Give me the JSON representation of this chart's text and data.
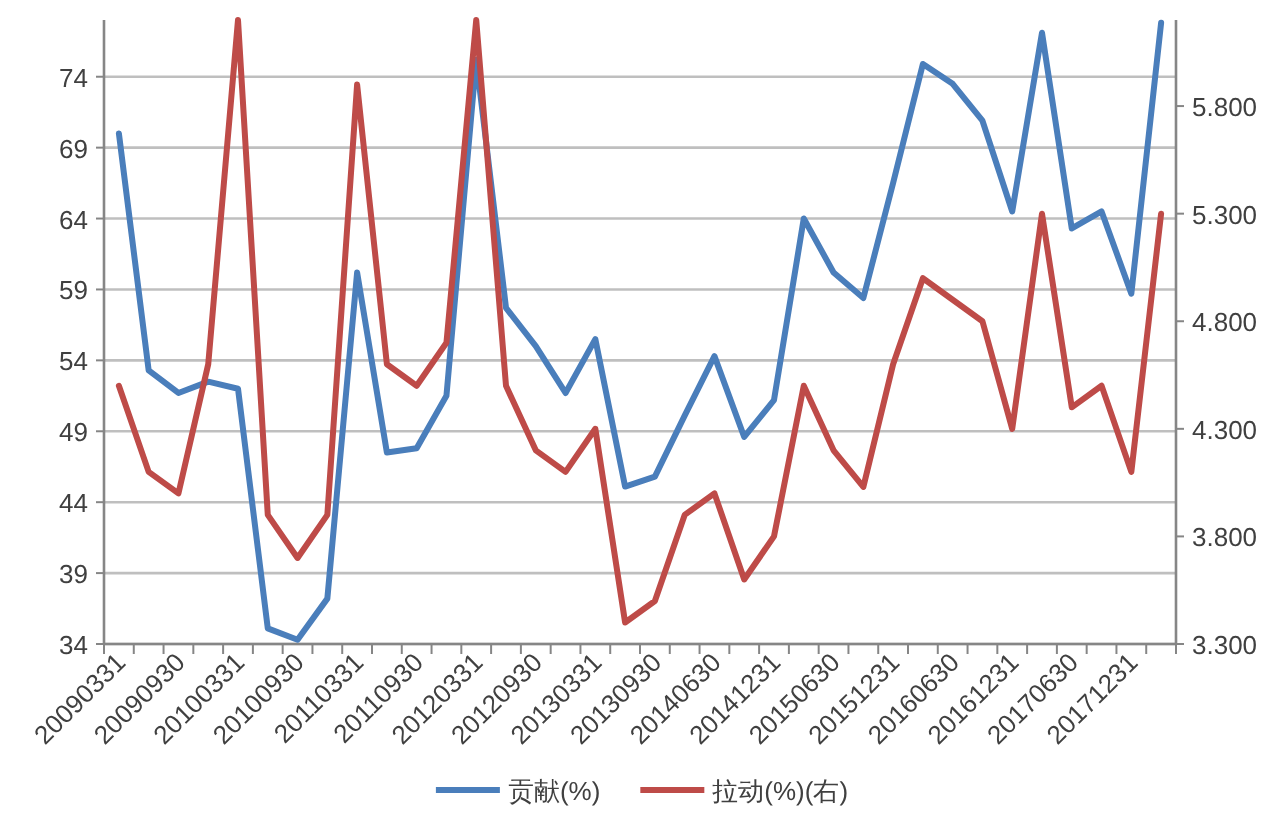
{
  "chart_data": {
    "type": "line",
    "categories": [
      "20090331",
      null,
      "20090930",
      null,
      "20100331",
      null,
      "20100930",
      null,
      "20110331",
      null,
      "20110930",
      null,
      "20120331",
      null,
      "20120930",
      null,
      "20130331",
      null,
      "20130930",
      null,
      "20140630",
      null,
      "20141231",
      null,
      "20150630",
      null,
      "20151231",
      null,
      "20160630",
      null,
      "20161231",
      null,
      "20170630",
      null,
      "20171231",
      null
    ],
    "series": [
      {
        "name": "贡献(%)",
        "color": "#4a7ebb",
        "values": [
          70.0,
          53.3,
          51.7,
          52.5,
          52.0,
          35.1,
          34.3,
          37.2,
          60.2,
          47.5,
          47.8,
          51.5,
          75.2,
          57.7,
          55.0,
          51.7,
          55.5,
          45.1,
          45.8,
          50.1,
          54.3,
          48.6,
          51.2,
          64.0,
          60.2,
          58.4,
          66.5,
          74.9,
          73.5,
          70.9,
          64.5,
          77.1,
          63.3,
          64.5,
          58.7,
          77.8
        ]
      },
      {
        "name": "拉动(%)(右)",
        "color": "#be4b48",
        "axis": "y2",
        "values": [
          4.5,
          4.1,
          4.0,
          4.6,
          6.2,
          3.9,
          3.7,
          3.9,
          5.9,
          4.6,
          4.5,
          4.7,
          6.2,
          4.5,
          4.2,
          4.1,
          4.3,
          3.4,
          3.5,
          3.9,
          4.0,
          3.6,
          3.8,
          4.5,
          4.2,
          4.03,
          4.6,
          5.0,
          4.9,
          4.8,
          4.3,
          5.3,
          4.4,
          4.5,
          4.1,
          5.3
        ]
      }
    ],
    "ylim": [
      34,
      78
    ],
    "yticks": [
      34,
      39,
      44,
      49,
      54,
      59,
      64,
      69,
      74
    ],
    "y2lim": [
      3.3,
      6.2
    ],
    "y2ticks": [
      {
        "value": 3.3,
        "label": "3.300"
      },
      {
        "value": 3.8,
        "label": "3.800"
      },
      {
        "value": 4.3,
        "label": "4.300"
      },
      {
        "value": 4.8,
        "label": "4.800"
      },
      {
        "value": 5.3,
        "label": "5.300"
      },
      {
        "value": 5.8,
        "label": "5.800"
      }
    ],
    "grid": "y",
    "legend": "bottom",
    "marker": "none",
    "line_style": "solid"
  }
}
